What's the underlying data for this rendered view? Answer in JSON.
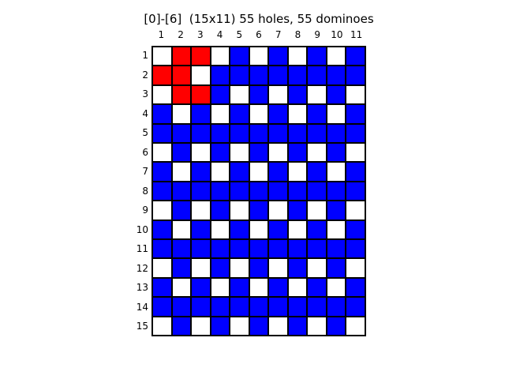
{
  "title": "[0]-[6]  (15x11) 55 holes, 55 dominoes",
  "columns": [
    "1",
    "2",
    "3",
    "4",
    "5",
    "6",
    "7",
    "8",
    "9",
    "10",
    "11"
  ],
  "rows": [
    "1",
    "2",
    "3",
    "4",
    "5",
    "6",
    "7",
    "8",
    "9",
    "10",
    "11",
    "12",
    "13",
    "14",
    "15"
  ],
  "colors": {
    "W": "#ffffff",
    "B": "#0000ff",
    "R": "#ff0000"
  },
  "grid": [
    "WRRWBWBWBWB",
    "RRWBBBBBBBB",
    "WRRBWBWBWBW",
    "BWBWBWBWBWB",
    "BBBBBBBBBBB",
    "WBWBWBWBWBW",
    "BWBWBWBWBWB",
    "BBBBBBBBBBB",
    "WBWBWBWBWBW",
    "BWBWBWBWBWB",
    "BBBBBBBBBBB",
    "WBWBWBWBWBW",
    "BWBWBWBWBWB",
    "BBBBBBBBBBB",
    "WBWBWBWBWBW"
  ]
}
